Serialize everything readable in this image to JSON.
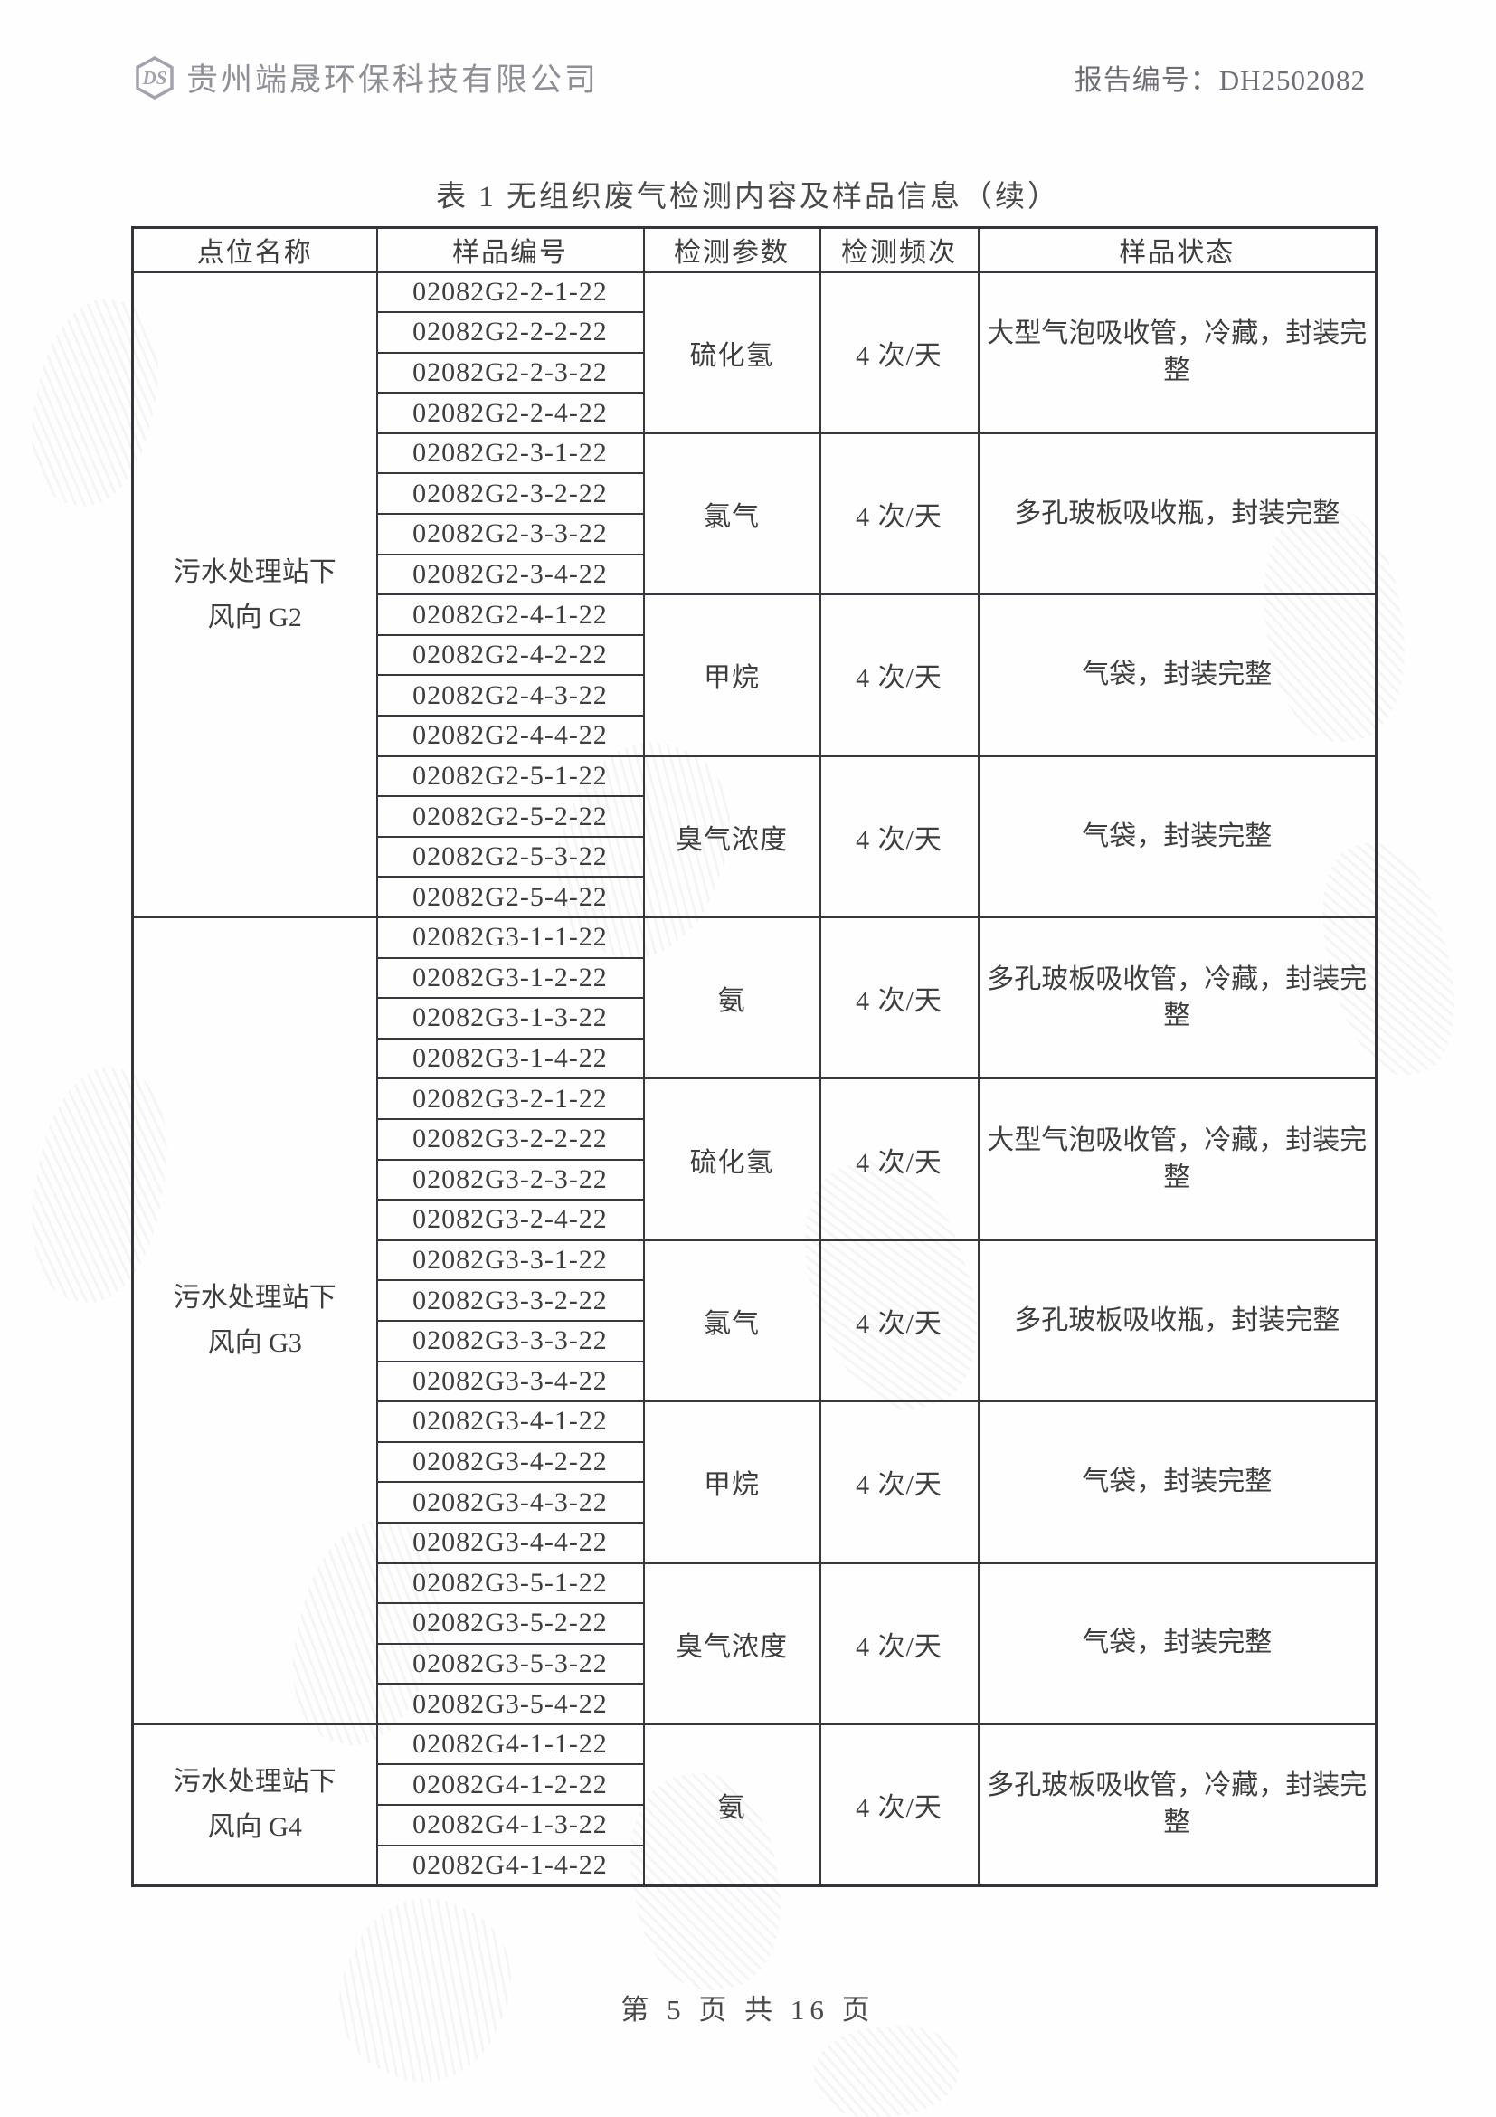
{
  "header": {
    "company_name": "贵州端晟环保科技有限公司",
    "report_number_label": "报告编号：DH2502082",
    "logo_text": "DS"
  },
  "table": {
    "title": "表 1 无组织废气检测内容及样品信息（续）",
    "columns": [
      "点位名称",
      "样品编号",
      "检测参数",
      "检测频次",
      "样品状态"
    ],
    "groups": [
      {
        "location": "污水处理站下风向 G2",
        "parameter_groups": [
          {
            "parameter": "硫化氢",
            "frequency": "4 次/天",
            "status": "大型气泡吸收管，冷藏，封装完整",
            "samples": [
              "02082G2-2-1-22",
              "02082G2-2-2-22",
              "02082G2-2-3-22",
              "02082G2-2-4-22"
            ]
          },
          {
            "parameter": "氯气",
            "frequency": "4 次/天",
            "status": "多孔玻板吸收瓶，封装完整",
            "samples": [
              "02082G2-3-1-22",
              "02082G2-3-2-22",
              "02082G2-3-3-22",
              "02082G2-3-4-22"
            ]
          },
          {
            "parameter": "甲烷",
            "frequency": "4 次/天",
            "status": "气袋，封装完整",
            "samples": [
              "02082G2-4-1-22",
              "02082G2-4-2-22",
              "02082G2-4-3-22",
              "02082G2-4-4-22"
            ]
          },
          {
            "parameter": "臭气浓度",
            "frequency": "4 次/天",
            "status": "气袋，封装完整",
            "samples": [
              "02082G2-5-1-22",
              "02082G2-5-2-22",
              "02082G2-5-3-22",
              "02082G2-5-4-22"
            ]
          }
        ]
      },
      {
        "location": "污水处理站下风向 G3",
        "parameter_groups": [
          {
            "parameter": "氨",
            "frequency": "4 次/天",
            "status": "多孔玻板吸收管，冷藏，封装完整",
            "samples": [
              "02082G3-1-1-22",
              "02082G3-1-2-22",
              "02082G3-1-3-22",
              "02082G3-1-4-22"
            ]
          },
          {
            "parameter": "硫化氢",
            "frequency": "4 次/天",
            "status": "大型气泡吸收管，冷藏，封装完整",
            "samples": [
              "02082G3-2-1-22",
              "02082G3-2-2-22",
              "02082G3-2-3-22",
              "02082G3-2-4-22"
            ]
          },
          {
            "parameter": "氯气",
            "frequency": "4 次/天",
            "status": "多孔玻板吸收瓶，封装完整",
            "samples": [
              "02082G3-3-1-22",
              "02082G3-3-2-22",
              "02082G3-3-3-22",
              "02082G3-3-4-22"
            ]
          },
          {
            "parameter": "甲烷",
            "frequency": "4 次/天",
            "status": "气袋，封装完整",
            "samples": [
              "02082G3-4-1-22",
              "02082G3-4-2-22",
              "02082G3-4-3-22",
              "02082G3-4-4-22"
            ]
          },
          {
            "parameter": "臭气浓度",
            "frequency": "4 次/天",
            "status": "气袋，封装完整",
            "samples": [
              "02082G3-5-1-22",
              "02082G3-5-2-22",
              "02082G3-5-3-22",
              "02082G3-5-4-22"
            ]
          }
        ]
      },
      {
        "location": "污水处理站下风向 G4",
        "parameter_groups": [
          {
            "parameter": "氨",
            "frequency": "4 次/天",
            "status": "多孔玻板吸收管，冷藏，封装完整",
            "samples": [
              "02082G4-1-1-22",
              "02082G4-1-2-22",
              "02082G4-1-3-22",
              "02082G4-1-4-22"
            ]
          }
        ]
      }
    ]
  },
  "footer": {
    "page_text": "第 5 页 共 16 页"
  }
}
